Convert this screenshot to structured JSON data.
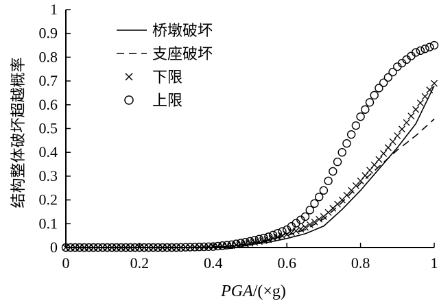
{
  "chart_data": {
    "type": "line",
    "title": "",
    "xlabel_italic": "PGA",
    "xlabel_rest": "/(×g)",
    "ylabel": "结构整体破坏超越概率",
    "xlim": [
      0,
      1
    ],
    "ylim": [
      0,
      1
    ],
    "x_ticks": [
      0,
      0.2,
      0.4,
      0.6,
      0.8,
      1
    ],
    "x_tick_labels": [
      "0",
      "0.2",
      "0.4",
      "0.6",
      "0.8",
      "1"
    ],
    "y_ticks": [
      0,
      0.1,
      0.2,
      0.3,
      0.4,
      0.5,
      0.6,
      0.7,
      0.8,
      0.9,
      1
    ],
    "y_tick_labels": [
      "0",
      "0.1",
      "0.2",
      "0.3",
      "0.4",
      "0.5",
      "0.6",
      "0.7",
      "0.8",
      "0.9",
      "1"
    ],
    "legend_position": "top-left",
    "x": [
      0,
      0.1,
      0.2,
      0.3,
      0.4,
      0.45,
      0.5,
      0.55,
      0.6,
      0.65,
      0.7,
      0.75,
      0.8,
      0.85,
      0.9,
      0.95,
      1.0
    ],
    "series": [
      {
        "name": "桥墩破坏",
        "style": "solid",
        "values": [
          0,
          0,
          0,
          0,
          0.002,
          0.006,
          0.012,
          0.022,
          0.038,
          0.058,
          0.09,
          0.16,
          0.24,
          0.33,
          0.42,
          0.52,
          0.68
        ]
      },
      {
        "name": "支座破坏",
        "style": "dashed",
        "values": [
          0,
          0,
          0,
          0,
          0.003,
          0.008,
          0.018,
          0.032,
          0.05,
          0.075,
          0.12,
          0.19,
          0.27,
          0.34,
          0.41,
          0.47,
          0.54
        ]
      },
      {
        "name": "下限",
        "style": "x-marker",
        "values": [
          0,
          0,
          0,
          0,
          0.003,
          0.008,
          0.018,
          0.033,
          0.055,
          0.085,
          0.13,
          0.2,
          0.28,
          0.37,
          0.47,
          0.58,
          0.69
        ]
      },
      {
        "name": "上限",
        "style": "circle-marker",
        "values": [
          0,
          0,
          0,
          0,
          0.004,
          0.012,
          0.026,
          0.045,
          0.075,
          0.13,
          0.24,
          0.4,
          0.55,
          0.67,
          0.76,
          0.82,
          0.85
        ]
      }
    ]
  }
}
